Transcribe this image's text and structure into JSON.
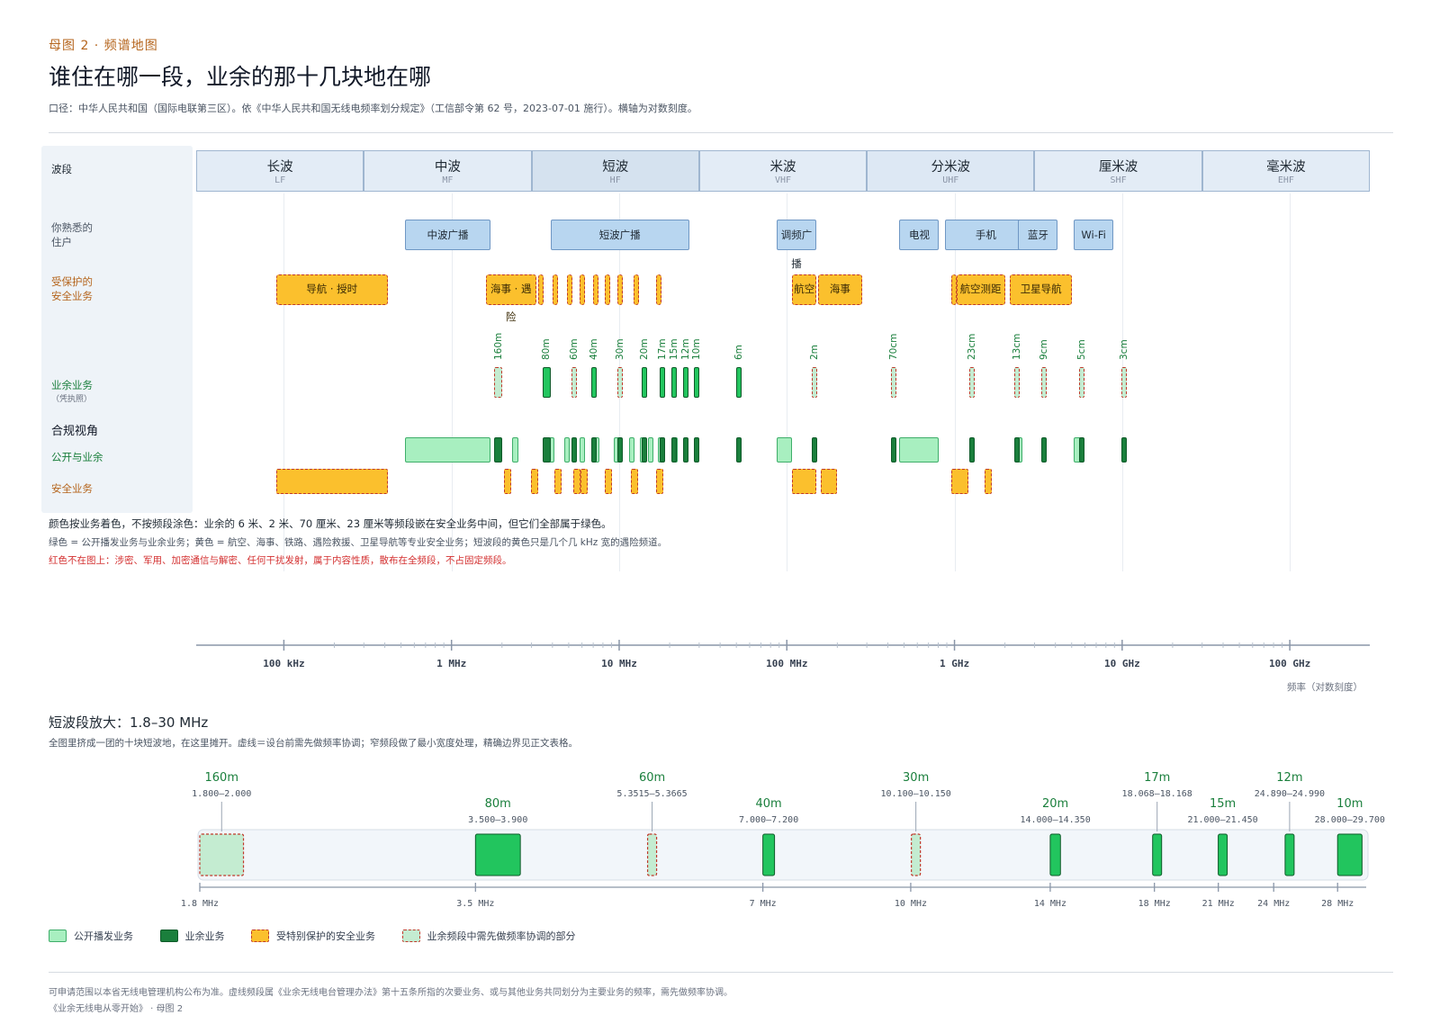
{
  "header": {
    "kicker": "母图 2 · 频谱地图",
    "title": "谁住在哪一段，业余的那十几块地在哪",
    "subtitle": "口径：中华人民共和国（国际电联第三区）。依《中华人民共和国无线电频率划分规定》（工信部令第 62 号，2023-07-01 施行）。横轴为对数刻度。"
  },
  "row_labels": {
    "bands": "波段",
    "familiar": [
      "你熟悉的",
      "住户"
    ],
    "protected": [
      "受保护的",
      "安全业务"
    ],
    "amateur": "业余业务",
    "amateur_sub": "（凭执照）",
    "compliance": "合规视角",
    "public_amateur": "公开与业余",
    "safety": "安全业务"
  },
  "bands": [
    {
      "zh": "长波",
      "en": "LF"
    },
    {
      "zh": "中波",
      "en": "MF"
    },
    {
      "zh": "短波",
      "en": "HF"
    },
    {
      "zh": "米波",
      "en": "VHF"
    },
    {
      "zh": "分米波",
      "en": "UHF"
    },
    {
      "zh": "厘米波",
      "en": "SHF"
    },
    {
      "zh": "毫米波",
      "en": "EHF"
    }
  ],
  "familiar": [
    {
      "label": "中波广播",
      "f": [
        0.53,
        1.7
      ]
    },
    {
      "label": "短波广播",
      "f": [
        3.9,
        26.1
      ]
    },
    {
      "label": "调频广播",
      "f": [
        87,
        108
      ]
    },
    {
      "label": "电视",
      "f": [
        470,
        806
      ]
    },
    {
      "label": "手机",
      "f": [
        880,
        2690
      ]
    },
    {
      "label": "蓝牙",
      "f": [
        2400,
        2483.5
      ]
    },
    {
      "label": "Wi-Fi",
      "f": [
        5150,
        5850
      ]
    }
  ],
  "protected": [
    {
      "label": "导航 · 授时",
      "f": [
        0.09,
        0.415
      ]
    },
    {
      "label": "海事 · 遇险",
      "f": [
        1.6,
        3.2
      ]
    },
    {
      "label": "",
      "f": [
        3.3,
        3.45
      ]
    },
    {
      "label": "",
      "f": [
        4.0,
        4.2
      ]
    },
    {
      "label": "",
      "f": [
        4.9,
        5.1
      ]
    },
    {
      "label": "",
      "f": [
        5.8,
        6.2
      ]
    },
    {
      "label": "",
      "f": [
        7.0,
        7.4
      ]
    },
    {
      "label": "",
      "f": [
        8.2,
        8.6
      ]
    },
    {
      "label": "",
      "f": [
        9.8,
        10.4
      ]
    },
    {
      "label": "",
      "f": [
        12.2,
        12.7
      ]
    },
    {
      "label": "",
      "f": [
        16.6,
        17.2
      ]
    },
    {
      "label": "航空",
      "f": [
        108,
        150
      ]
    },
    {
      "label": "海事",
      "f": [
        154,
        280
      ]
    },
    {
      "label": "",
      "f": [
        960,
        1000
      ]
    },
    {
      "label": "航空测距",
      "f": [
        1025,
        2000
      ]
    },
    {
      "label": "卫星导航",
      "f": [
        2150,
        5000
      ]
    }
  ],
  "amateur": [
    {
      "label": "160m",
      "f": [
        1.8,
        2.0
      ],
      "coord": true
    },
    {
      "label": "80m",
      "f": [
        3.5,
        3.9
      ],
      "coord": false
    },
    {
      "label": "60m",
      "f": [
        5.3515,
        5.3665
      ],
      "coord": true
    },
    {
      "label": "40m",
      "f": [
        7.0,
        7.2
      ],
      "coord": false
    },
    {
      "label": "30m",
      "f": [
        10.1,
        10.15
      ],
      "coord": true
    },
    {
      "label": "20m",
      "f": [
        14.0,
        14.35
      ],
      "coord": false
    },
    {
      "label": "17m",
      "f": [
        18.068,
        18.168
      ],
      "coord": false
    },
    {
      "label": "15m",
      "f": [
        21.0,
        21.45
      ],
      "coord": false
    },
    {
      "label": "12m",
      "f": [
        24.89,
        24.99
      ],
      "coord": false
    },
    {
      "label": "10m",
      "f": [
        28.0,
        29.7
      ],
      "coord": false
    },
    {
      "label": "6m",
      "f": [
        50,
        54
      ],
      "coord": false
    },
    {
      "label": "2m",
      "f": [
        144,
        148
      ],
      "coord": true
    },
    {
      "label": "70cm",
      "f": [
        430,
        440
      ],
      "coord": true
    },
    {
      "label": "23cm",
      "f": [
        1240,
        1300
      ],
      "coord": true
    },
    {
      "label": "13cm",
      "f": [
        2300,
        2450
      ],
      "coord": true
    },
    {
      "label": "9cm",
      "f": [
        3300,
        3500
      ],
      "coord": true
    },
    {
      "label": "5cm",
      "f": [
        5650,
        5850
      ],
      "coord": true
    },
    {
      "label": "3cm",
      "f": [
        10000,
        10500
      ],
      "coord": true
    }
  ],
  "compliance_public": [
    {
      "kind": "broadcast",
      "f": [
        0.53,
        1.7
      ]
    },
    {
      "kind": "broadcast",
      "f": [
        2.3,
        2.5
      ]
    },
    {
      "kind": "broadcast",
      "f": [
        3.9,
        4.0
      ]
    },
    {
      "kind": "broadcast",
      "f": [
        4.75,
        5.06
      ]
    },
    {
      "kind": "broadcast",
      "f": [
        5.9,
        6.2
      ]
    },
    {
      "kind": "broadcast",
      "f": [
        7.2,
        7.45
      ]
    },
    {
      "kind": "broadcast",
      "f": [
        9.4,
        9.9
      ]
    },
    {
      "kind": "broadcast",
      "f": [
        11.6,
        12.1
      ]
    },
    {
      "kind": "broadcast",
      "f": [
        13.57,
        13.87
      ]
    },
    {
      "kind": "broadcast",
      "f": [
        15.1,
        15.8
      ]
    },
    {
      "kind": "broadcast",
      "f": [
        17.48,
        17.9
      ]
    },
    {
      "kind": "broadcast",
      "f": [
        21.45,
        21.85
      ]
    },
    {
      "kind": "broadcast",
      "f": [
        87,
        108
      ]
    },
    {
      "kind": "broadcast",
      "f": [
        470,
        806
      ]
    },
    {
      "kind": "broadcast",
      "f": [
        2400,
        2483.5
      ]
    },
    {
      "kind": "broadcast",
      "f": [
        5150,
        5650
      ]
    },
    {
      "kind": "amateur",
      "f": [
        1.8,
        2.0
      ]
    },
    {
      "kind": "amateur",
      "f": [
        3.5,
        3.9
      ]
    },
    {
      "kind": "amateur",
      "f": [
        5.3515,
        5.3665
      ]
    },
    {
      "kind": "amateur",
      "f": [
        7.0,
        7.2
      ]
    },
    {
      "kind": "amateur",
      "f": [
        10.1,
        10.15
      ]
    },
    {
      "kind": "amateur",
      "f": [
        14.0,
        14.35
      ]
    },
    {
      "kind": "amateur",
      "f": [
        18.068,
        18.168
      ]
    },
    {
      "kind": "amateur",
      "f": [
        21.0,
        21.45
      ]
    },
    {
      "kind": "amateur",
      "f": [
        24.89,
        24.99
      ]
    },
    {
      "kind": "amateur",
      "f": [
        28.0,
        29.7
      ]
    },
    {
      "kind": "amateur",
      "f": [
        50,
        54
      ]
    },
    {
      "kind": "amateur",
      "f": [
        144,
        148
      ]
    },
    {
      "kind": "amateur",
      "f": [
        430,
        440
      ]
    },
    {
      "kind": "amateur",
      "f": [
        1240,
        1300
      ]
    },
    {
      "kind": "amateur",
      "f": [
        2300,
        2450
      ]
    },
    {
      "kind": "amateur",
      "f": [
        3300,
        3500
      ]
    },
    {
      "kind": "amateur",
      "f": [
        5650,
        5850
      ]
    },
    {
      "kind": "amateur",
      "f": [
        10000,
        10500
      ]
    }
  ],
  "compliance_safety": [
    {
      "f": [
        0.09,
        0.415
      ]
    },
    {
      "f": [
        2.1,
        2.2
      ]
    },
    {
      "f": [
        3.0,
        3.3
      ]
    },
    {
      "f": [
        4.1,
        4.5
      ]
    },
    {
      "f": [
        5.45,
        5.7
      ]
    },
    {
      "f": [
        6.0,
        6.4
      ]
    },
    {
      "f": [
        8.3,
        9.0
      ]
    },
    {
      "f": [
        12.0,
        12.8
      ]
    },
    {
      "f": [
        17.0,
        18.0
      ]
    },
    {
      "f": [
        108,
        150
      ]
    },
    {
      "f": [
        160,
        200
      ]
    },
    {
      "f": [
        960,
        1215
      ]
    },
    {
      "f": [
        1559,
        1610
      ]
    }
  ],
  "notes": {
    "n1": "颜色按业务着色，不按频段涂色：业余的 6 米、2 米、70 厘米、23 厘米等频段嵌在安全业务中间，但它们全部属于绿色。",
    "n2": "绿色 = 公开播发业务与业余业务；黄色 = 航空、海事、铁路、遇险救援、卫星导航等专业安全业务；短波段的黄色只是几个几 kHz 宽的遇险频道。",
    "n3": "红色不在图上：涉密、军用、加密通信与解密、任何干扰发射，属于内容性质，散布在全频段，不占固定频段。"
  },
  "axis": {
    "ticks": [
      {
        "f": 0.1,
        "label": "100 kHz"
      },
      {
        "f": 1,
        "label": "1 MHz"
      },
      {
        "f": 10,
        "label": "10 MHz"
      },
      {
        "f": 100,
        "label": "100 MHz"
      },
      {
        "f": 1000,
        "label": "1 GHz"
      },
      {
        "f": 10000,
        "label": "10 GHz"
      },
      {
        "f": 100000,
        "label": "100 GHz"
      }
    ],
    "caption": "频率（对数刻度）"
  },
  "zoom": {
    "heading": "短波段放大：1.8–30 MHz",
    "sub": "全图里挤成一团的十块短波地，在这里摊开。虚线＝设台前需先做频率协调；窄频段做了最小宽度处理，精确边界见正文表格。",
    "range": [
      1.8,
      30
    ],
    "bands": [
      {
        "name": "160m",
        "range_text": "1.800–2.000",
        "f": [
          1.8,
          2.0
        ],
        "coord": true
      },
      {
        "name": "80m",
        "range_text": "3.500–3.900",
        "f": [
          3.5,
          3.9
        ],
        "coord": false
      },
      {
        "name": "60m",
        "range_text": "5.3515–5.3665",
        "f": [
          5.3515,
          5.3665
        ],
        "coord": true
      },
      {
        "name": "40m",
        "range_text": "7.000–7.200",
        "f": [
          7.0,
          7.2
        ],
        "coord": false
      },
      {
        "name": "30m",
        "range_text": "10.100–10.150",
        "f": [
          10.1,
          10.15
        ],
        "coord": true
      },
      {
        "name": "20m",
        "range_text": "14.000–14.350",
        "f": [
          14.0,
          14.35
        ],
        "coord": false
      },
      {
        "name": "17m",
        "range_text": "18.068–18.168",
        "f": [
          18.068,
          18.168
        ],
        "coord": false
      },
      {
        "name": "15m",
        "range_text": "21.000–21.450",
        "f": [
          21.0,
          21.45
        ],
        "coord": false
      },
      {
        "name": "12m",
        "range_text": "24.890–24.990",
        "f": [
          24.89,
          24.99
        ],
        "coord": false
      },
      {
        "name": "10m",
        "range_text": "28.000–29.700",
        "f": [
          28.0,
          29.7
        ],
        "coord": false
      }
    ],
    "ticks": [
      {
        "f": 1.8,
        "label": "1.8 MHz"
      },
      {
        "f": 3.5,
        "label": "3.5 MHz"
      },
      {
        "f": 7,
        "label": "7 MHz"
      },
      {
        "f": 10,
        "label": "10 MHz"
      },
      {
        "f": 14,
        "label": "14 MHz"
      },
      {
        "f": 18,
        "label": "18 MHz"
      },
      {
        "f": 21,
        "label": "21 MHz"
      },
      {
        "f": 24,
        "label": "24 MHz"
      },
      {
        "f": 28,
        "label": "28 MHz"
      }
    ]
  },
  "legend": [
    {
      "label": "公开播发业务",
      "kind": "broadcast"
    },
    {
      "label": "业余业务",
      "kind": "amateur"
    },
    {
      "label": "受特别保护的安全业务",
      "kind": "safety"
    },
    {
      "label": "业余频段中需先做频率协调的部分",
      "kind": "coord"
    }
  ],
  "colors": {
    "broadcast": "#a8efc0",
    "broadcast_border": "#3fae6a",
    "amateur": "#1a7f3c",
    "amateur_light": "#22c55e",
    "safety": "#fbc02d",
    "coord_fill": "#c4ecd1",
    "dash": "#c0392b",
    "familiar": "#b8d6f0",
    "hf_band": "#d5e2ef",
    "band": "#e3ecf6"
  },
  "footer": {
    "f1": "可申请范围以本省无线电管理机构公布为准。虚线频段属《业余无线电台管理办法》第十五条所指的次要业务、或与其他业务共同划分为主要业务的频率，需先做频率协调。",
    "f2": "《业余无线电从零开始》 · 母图 2"
  }
}
